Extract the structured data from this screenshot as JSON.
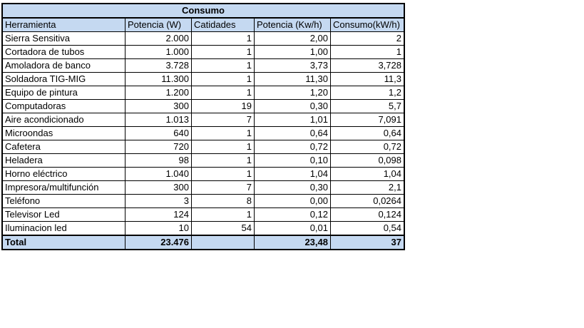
{
  "table": {
    "title": "Consumo",
    "headers": [
      "Herramienta",
      "Potencia (W)",
      "Catidades",
      "Potencia (Kw/h)",
      "Consumo(kW/h)"
    ],
    "rows": [
      [
        "Sierra Sensitiva",
        "2.000",
        "1",
        "2,00",
        "2"
      ],
      [
        "Cortadora de tubos",
        "1.000",
        "1",
        "1,00",
        "1"
      ],
      [
        "Amoladora de banco",
        "3.728",
        "1",
        "3,73",
        "3,728"
      ],
      [
        "Soldadora TIG-MIG",
        "11.300",
        "1",
        "11,30",
        "11,3"
      ],
      [
        "Equipo de pintura",
        "1.200",
        "1",
        "1,20",
        "1,2"
      ],
      [
        "Computadoras",
        "300",
        "19",
        "0,30",
        "5,7"
      ],
      [
        "Aire acondicionado",
        "1.013",
        "7",
        "1,01",
        "7,091"
      ],
      [
        "Microondas",
        "640",
        "1",
        "0,64",
        "0,64"
      ],
      [
        "Cafetera",
        "720",
        "1",
        "0,72",
        "0,72"
      ],
      [
        "Heladera",
        "98",
        "1",
        "0,10",
        "0,098"
      ],
      [
        "Horno eléctrico",
        "1.040",
        "1",
        "1,04",
        "1,04"
      ],
      [
        "Impresora/multifunción",
        "300",
        "7",
        "0,30",
        "2,1"
      ],
      [
        "Teléfono",
        "3",
        "8",
        "0,00",
        "0,0264"
      ],
      [
        "Televisor Led",
        "124",
        "1",
        "0,12",
        "0,124"
      ],
      [
        "Iluminacion led",
        "10",
        "54",
        "0,01",
        "0,54"
      ]
    ],
    "total": [
      "Total",
      "23.476",
      "",
      "23,48",
      "37"
    ],
    "header_color": "#c5d9f1"
  }
}
